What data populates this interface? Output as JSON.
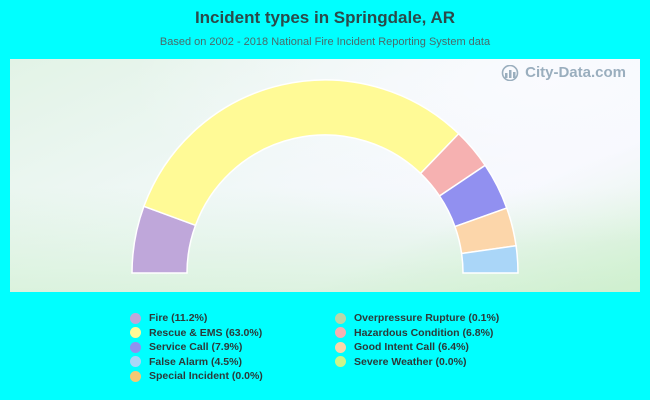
{
  "title": "Incident types in Springdale, AR",
  "subtitle": "Based on 2002 - 2018 National Fire Incident Reporting System data",
  "watermark": "City-Data.com",
  "chart_data": {
    "type": "pie",
    "style": "half-donut",
    "title": "Incident types in Springdale, AR",
    "subtitle": "Based on 2002 - 2018 National Fire Incident Reporting System data",
    "legend_position": "bottom",
    "slices": [
      {
        "label": "Fire (11.2%)",
        "value": 11.2,
        "color": "#bfa7da"
      },
      {
        "label": "Rescue & EMS (63.0%)",
        "value": 63.0,
        "color": "#fffa96"
      },
      {
        "label": "Service Call (7.9%)",
        "value": 7.9,
        "color": "#9190f0"
      },
      {
        "label": "False Alarm (4.5%)",
        "value": 4.5,
        "color": "#aad6f8"
      },
      {
        "label": "Special Incident (0.0%)",
        "value": 0.0,
        "color": "#f6c872"
      },
      {
        "label": "Overpressure Rupture (0.1%)",
        "value": 0.1,
        "color": "#b9d7a9"
      },
      {
        "label": "Hazardous Condition (6.8%)",
        "value": 6.8,
        "color": "#f6b1b1"
      },
      {
        "label": "Good Intent Call (6.4%)",
        "value": 6.4,
        "color": "#fcd6aa"
      },
      {
        "label": "Severe Weather (0.0%)",
        "value": 0.0,
        "color": "#cbf58a"
      }
    ],
    "arc_order": [
      "Fire (11.2%)",
      "Rescue & EMS (63.0%)",
      "Hazardous Condition (6.8%)",
      "Service Call (7.9%)",
      "Good Intent Call (6.4%)",
      "False Alarm (4.5%)"
    ]
  }
}
